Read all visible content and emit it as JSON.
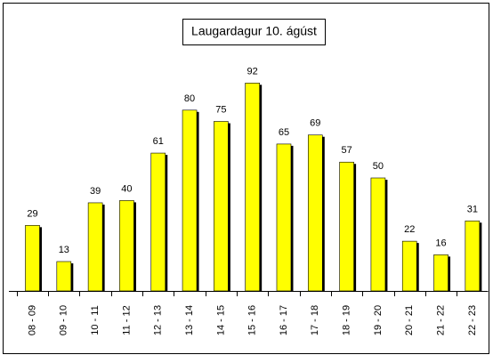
{
  "chart_data": {
    "type": "bar",
    "title": "Laugardagur 10. ágúst",
    "categories": [
      "08 - 09",
      "09 - 10",
      "10 - 11",
      "11 - 12",
      "12 - 13",
      "13 - 14",
      "14 - 15",
      "15 - 16",
      "16 - 17",
      "17 - 18",
      "18 - 19",
      "19 - 20",
      "20 - 21",
      "21 - 22",
      "22 - 23"
    ],
    "values": [
      29,
      13,
      39,
      40,
      61,
      80,
      75,
      92,
      65,
      69,
      57,
      50,
      22,
      16,
      31
    ],
    "color": "#ffff00",
    "ylim": [
      0,
      100
    ]
  }
}
